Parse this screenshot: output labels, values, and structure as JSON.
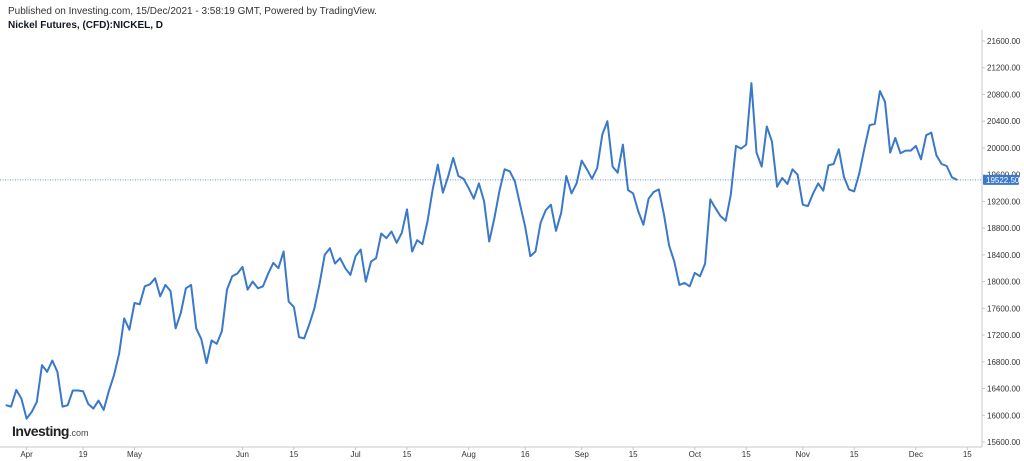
{
  "header": {
    "published": "Published on Investing.com, 15/Dec/2021 - 3:58:19 GMT, Powered by TradingView.",
    "symbol": "Nickel Futures, (CFD):NICKEL, D"
  },
  "watermark": {
    "brand": "Investing",
    "suffix": ".com"
  },
  "colors": {
    "line": "#3a78c9",
    "axis": "#c8c8c8",
    "priceTag": "#3a78c9",
    "lastLine": "#3a78c9"
  },
  "chart_data": {
    "type": "line",
    "series": [
      {
        "values": [
          16150,
          16130,
          16380,
          16250,
          15950,
          16050,
          16200,
          16750,
          16650,
          16820,
          16650,
          16130,
          16150,
          16370,
          16370,
          16360,
          16170,
          16100,
          16220,
          16080,
          16360,
          16600,
          16920,
          17450,
          17280,
          17680,
          17660,
          17930,
          17960,
          18050,
          17780,
          17950,
          17860,
          17300,
          17530,
          17900,
          17950,
          17300,
          17140,
          16780,
          17120,
          17070,
          17260,
          17880,
          18080,
          18120,
          18220,
          17880,
          18000,
          17900,
          17930,
          18120,
          18280,
          18200,
          18450,
          17700,
          17620,
          17170,
          17150,
          17360,
          17600,
          17970,
          18400,
          18500,
          18270,
          18350,
          18200,
          18100,
          18380,
          18480,
          18000,
          18300,
          18350,
          18720,
          18650,
          18750,
          18580,
          18730,
          19080,
          18450,
          18620,
          18560,
          18900,
          19380,
          19750,
          19330,
          19570,
          19850,
          19580,
          19540,
          19400,
          19240,
          19470,
          19200,
          18600,
          18950,
          19360,
          19680,
          19650,
          19500,
          19150,
          18820,
          18380,
          18450,
          18880,
          19070,
          19150,
          18760,
          19030,
          19580,
          19320,
          19470,
          19810,
          19680,
          19540,
          19700,
          20200,
          20400,
          19720,
          19630,
          20050,
          19370,
          19320,
          19050,
          18850,
          19240,
          19340,
          19380,
          19000,
          18540,
          18300,
          17950,
          17980,
          17930,
          18130,
          18080,
          18270,
          19230,
          19100,
          18980,
          18910,
          19300,
          20030,
          19990,
          20050,
          20970,
          19930,
          19720,
          20320,
          20100,
          19420,
          19550,
          19460,
          19680,
          19600,
          19150,
          19130,
          19320,
          19470,
          19360,
          19740,
          19760,
          19980,
          19570,
          19380,
          19350,
          19620,
          20000,
          20340,
          20360,
          20850,
          20690,
          19930,
          20150,
          19920,
          19960,
          19960,
          20030,
          19830,
          20190,
          20230,
          19890,
          19760,
          19730,
          19560,
          19522.5
        ]
      }
    ],
    "x_ticks": [
      {
        "label": "Apr",
        "i": 4
      },
      {
        "label": "19",
        "i": 15
      },
      {
        "label": "May",
        "i": 25
      },
      {
        "label": "Jun",
        "i": 46
      },
      {
        "label": "15",
        "i": 56
      },
      {
        "label": "Jul",
        "i": 68
      },
      {
        "label": "15",
        "i": 78
      },
      {
        "label": "Aug",
        "i": 90
      },
      {
        "label": "16",
        "i": 101
      },
      {
        "label": "Sep",
        "i": 112
      },
      {
        "label": "15",
        "i": 122
      },
      {
        "label": "Oct",
        "i": 134
      },
      {
        "label": "15",
        "i": 144
      },
      {
        "label": "Nov",
        "i": 155
      },
      {
        "label": "15",
        "i": 165
      },
      {
        "label": "Dec",
        "i": 177
      },
      {
        "label": "15",
        "i": 187
      }
    ],
    "y_ticks": [
      15600,
      16000,
      16400,
      16800,
      17200,
      17600,
      18000,
      18400,
      18800,
      19200,
      19600,
      20000,
      20400,
      20800,
      21200,
      21600
    ],
    "y_tick_labels": [
      "15600.00",
      "16000.00",
      "16400.00",
      "16800.00",
      "17200.00",
      "17600.00",
      "18000.00",
      "18400.00",
      "18800.00",
      "19200.00",
      "19600.00",
      "20000.00",
      "20400.00",
      "20800.00",
      "21200.00",
      "21600.00"
    ],
    "ylim": [
      15500,
      21750
    ],
    "last_value": 19522.5,
    "last_value_label": "19522.50",
    "grid": false
  }
}
